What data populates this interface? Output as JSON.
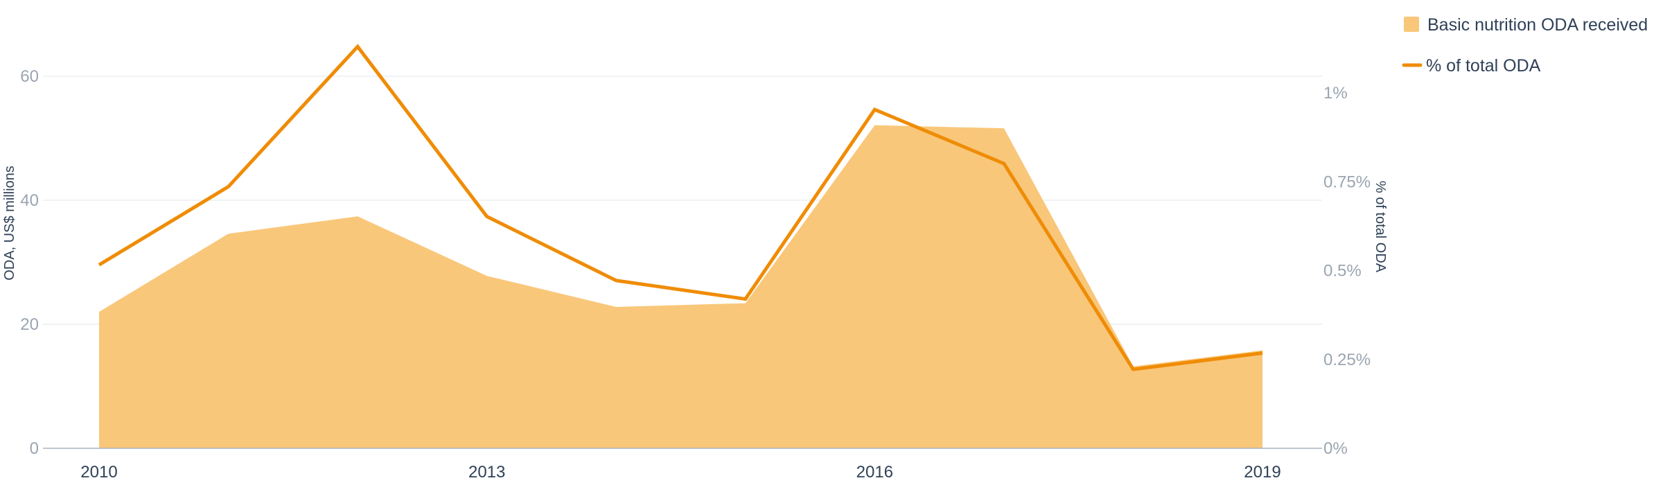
{
  "chart_data": {
    "type": "area",
    "x": [
      2010,
      2011,
      2012,
      2013,
      2014,
      2015,
      2016,
      2017,
      2018,
      2019
    ],
    "x_tick_labels": [
      "2010",
      "2013",
      "2016",
      "2019"
    ],
    "series": [
      {
        "name": "Basic nutrition ODA received",
        "type": "area",
        "axis": "left",
        "color": "#f9c77a",
        "values": [
          22.0,
          34.6,
          37.4,
          27.8,
          22.8,
          23.4,
          52.1,
          51.6,
          13.2,
          15.8
        ]
      },
      {
        "name": "% of total ODA",
        "type": "line",
        "axis": "right",
        "color": "#ef8c06",
        "values": [
          0.516,
          0.736,
          1.13,
          0.652,
          0.472,
          0.42,
          0.953,
          0.801,
          0.222,
          0.268
        ]
      }
    ],
    "left_axis": {
      "label": "ODA, US$ millions",
      "ticks": [
        "0",
        "20",
        "40",
        "60"
      ],
      "tick_values": [
        0,
        20,
        40,
        60
      ],
      "ylim": [
        0,
        60
      ]
    },
    "right_axis": {
      "label": "% of total ODA",
      "ticks": [
        "0%",
        "0.25%",
        "0.5%",
        "0.75%",
        "1%"
      ],
      "tick_values": [
        0,
        0.25,
        0.5,
        0.75,
        1
      ],
      "ylim": [
        0,
        1
      ]
    },
    "grid": true,
    "legend_position": "top-right"
  }
}
